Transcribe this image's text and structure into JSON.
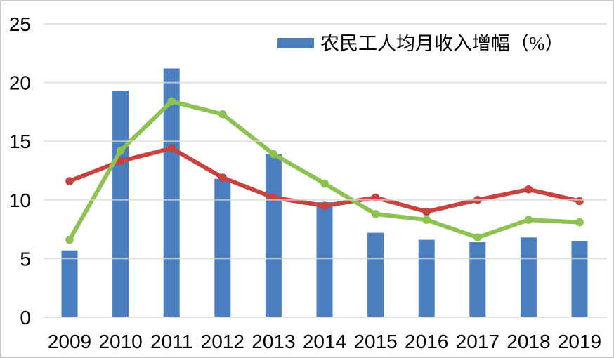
{
  "chart_data": {
    "type": "combo-bar-line",
    "title": "",
    "xlabel": "",
    "ylabel": "",
    "categories": [
      "2009",
      "2010",
      "2011",
      "2012",
      "2013",
      "2014",
      "2015",
      "2016",
      "2017",
      "2018",
      "2019"
    ],
    "series": [
      {
        "key": "migrant-income-growth-bars",
        "name": "农民工人均月收入增幅（%）",
        "type": "bar",
        "color": "#4a7ebe",
        "in_legend": true,
        "values": [
          5.7,
          19.3,
          21.2,
          11.8,
          13.9,
          9.8,
          7.2,
          6.6,
          6.4,
          6.8,
          6.5
        ]
      },
      {
        "key": "red-line",
        "name": "",
        "type": "line",
        "color": "#c8433f",
        "in_legend": false,
        "values": [
          11.6,
          13.3,
          14.4,
          11.9,
          10.2,
          9.5,
          10.2,
          9.0,
          10.0,
          10.9,
          9.9
        ]
      },
      {
        "key": "green-line",
        "name": "",
        "type": "line",
        "color": "#8dc152",
        "in_legend": false,
        "values": [
          6.6,
          14.2,
          18.4,
          17.3,
          13.9,
          11.4,
          8.8,
          8.3,
          6.8,
          8.3,
          8.1
        ]
      }
    ],
    "ylim": [
      0,
      25
    ],
    "yticks": [
      0,
      5,
      10,
      15,
      20,
      25
    ],
    "grid": true,
    "gridlines_on_top": true,
    "legend_position": "top-center"
  },
  "colors": {
    "bar_blue": "#4a7ebe",
    "line_red": "#c8433f",
    "line_green": "#8dc152",
    "gridline": "#d9d9d9",
    "frame_border": "#c9c9c9",
    "text": "#000000",
    "background": "#ffffff"
  }
}
